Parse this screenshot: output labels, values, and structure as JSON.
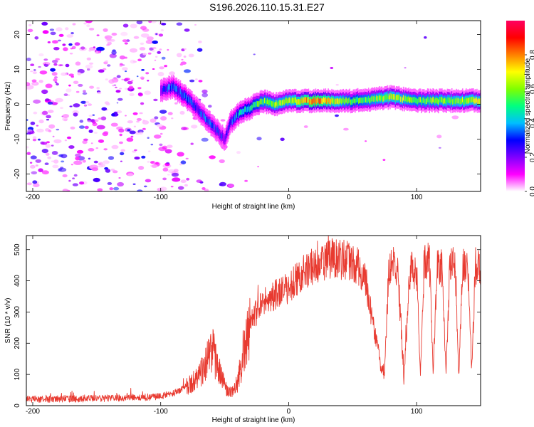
{
  "title": "S196.2026.110.15.31.E27",
  "chart_data": [
    {
      "type": "heatmap",
      "name": "spectrogram",
      "xlabel": "Height of straight line (km)",
      "ylabel": "Frequency (Hz)",
      "xlim": [
        -205,
        150
      ],
      "ylim": [
        -25,
        24
      ],
      "xticks": [
        -200,
        -100,
        0,
        100
      ],
      "yticks": [
        -20,
        -10,
        0,
        10,
        20
      ],
      "colorbar": {
        "label": "Normalized spectral amplitude",
        "range": [
          0.0,
          1.0
        ],
        "ticks": [
          0.0,
          0.2,
          0.4,
          0.6,
          0.8
        ],
        "colors": [
          "#ffffff",
          "#ff00ff",
          "#7f00ff",
          "#0000ff",
          "#00bfff",
          "#00ff80",
          "#7fff00",
          "#ffff00",
          "#ff8000",
          "#ff0000",
          "#ff0060"
        ]
      },
      "ridge": {
        "x": [
          -100,
          -90,
          -80,
          -70,
          -60,
          -50,
          -45,
          -40,
          -30,
          -20,
          -10,
          0,
          20,
          50,
          80,
          100,
          120,
          150
        ],
        "y": [
          4,
          5,
          2,
          -2,
          -6,
          -10,
          -5,
          -3,
          -1,
          1,
          0,
          1,
          1,
          1,
          2,
          1,
          1,
          1
        ],
        "amplitude": [
          0.3,
          0.4,
          0.4,
          0.35,
          0.35,
          0.3,
          0.35,
          0.45,
          0.55,
          0.65,
          0.7,
          0.7,
          0.95,
          0.6,
          0.75,
          0.65,
          0.7,
          0.75
        ]
      }
    },
    {
      "type": "line",
      "name": "snr",
      "xlabel": "Height of straight line (km)",
      "ylabel": "SNR (10 * v/v)",
      "xlim": [
        -205,
        150
      ],
      "ylim": [
        0,
        545
      ],
      "xticks": [
        -200,
        -100,
        0,
        100
      ],
      "yticks": [
        0,
        100,
        200,
        300,
        400,
        500
      ],
      "series": [
        {
          "name": "SNR",
          "color": "#e83a30",
          "x": [
            -205,
            -180,
            -160,
            -140,
            -120,
            -100,
            -90,
            -80,
            -70,
            -65,
            -60,
            -55,
            -50,
            -45,
            -40,
            -35,
            -30,
            -25,
            -20,
            -15,
            -10,
            -5,
            0,
            10,
            20,
            30,
            40,
            50,
            55,
            60,
            63,
            66,
            70,
            72,
            75,
            78,
            80,
            85,
            88,
            90,
            95,
            100,
            103,
            106,
            110,
            113,
            116,
            120,
            123,
            126,
            130,
            133,
            136,
            140,
            143,
            146,
            150
          ],
          "y": [
            20,
            22,
            22,
            24,
            25,
            30,
            40,
            60,
            90,
            130,
            180,
            120,
            60,
            40,
            70,
            180,
            250,
            300,
            330,
            340,
            360,
            370,
            380,
            420,
            450,
            470,
            470,
            460,
            440,
            400,
            330,
            260,
            180,
            120,
            100,
            420,
            460,
            430,
            250,
            85,
            440,
            430,
            90,
            470,
            460,
            110,
            450,
            440,
            100,
            450,
            450,
            100,
            460,
            450,
            120,
            450,
            440
          ]
        }
      ]
    }
  ]
}
